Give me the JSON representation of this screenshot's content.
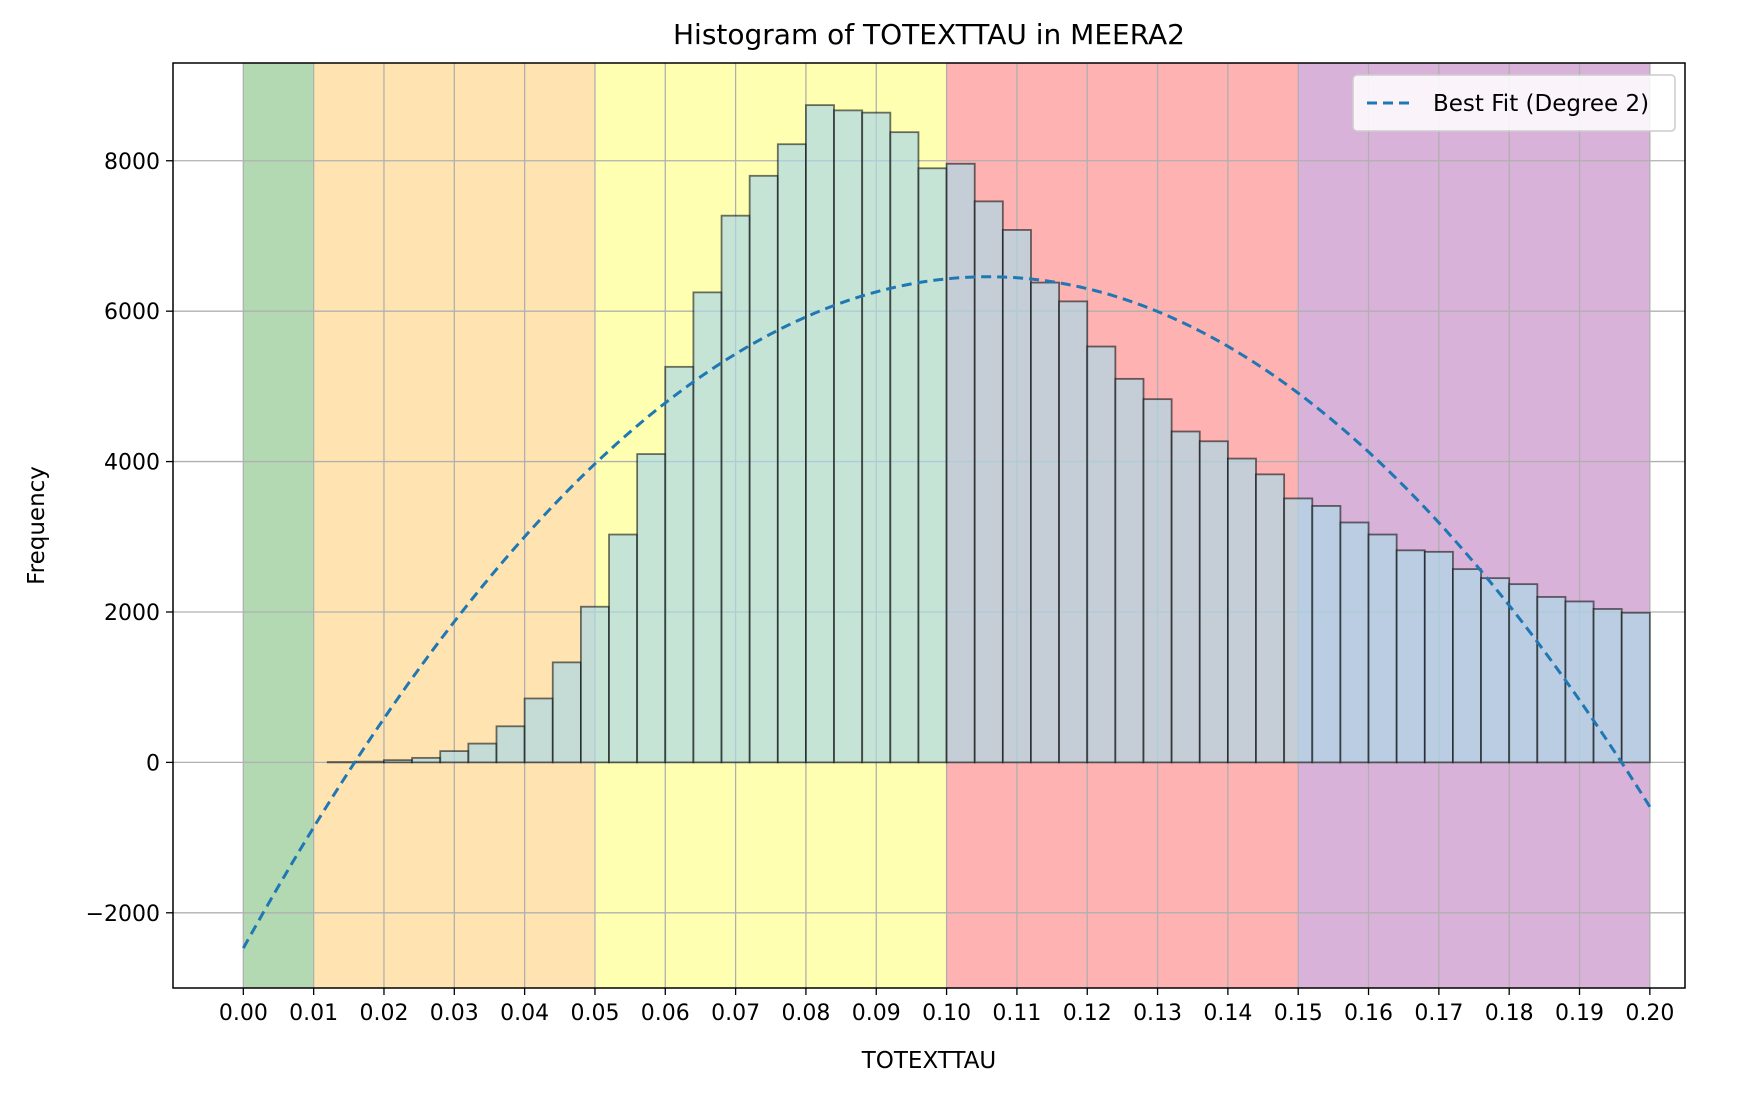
{
  "chart_data": {
    "type": "bar",
    "title": "Histogram of TOTEXTTAU in MEERA2",
    "xlabel": "TOTEXTTAU",
    "ylabel": "Frequency",
    "xlim": [
      -0.01,
      0.205
    ],
    "ylim": [
      -3000,
      9300
    ],
    "x_ticks": [
      "0.00",
      "0.01",
      "0.02",
      "0.03",
      "0.04",
      "0.05",
      "0.06",
      "0.07",
      "0.08",
      "0.09",
      "0.10",
      "0.11",
      "0.12",
      "0.13",
      "0.14",
      "0.15",
      "0.16",
      "0.17",
      "0.18",
      "0.19",
      "0.20"
    ],
    "y_ticks": [
      -2000,
      0,
      2000,
      4000,
      6000,
      8000
    ],
    "y_tick_labels": [
      "−2000",
      "0",
      "2000",
      "4000",
      "6000",
      "8000"
    ],
    "grid": true,
    "bin_width": 0.004,
    "bin_start": 0.0,
    "values": [
      0,
      0,
      0,
      5,
      10,
      30,
      60,
      150,
      250,
      480,
      850,
      1330,
      2070,
      3030,
      4100,
      5260,
      6250,
      7270,
      7800,
      8220,
      8740,
      8670,
      8640,
      8380,
      7900,
      7960,
      7460,
      7080,
      6380,
      6130,
      5530,
      5100,
      4830,
      4400,
      4270,
      4040,
      3830,
      3510,
      3410,
      3190,
      3030,
      2820,
      2800,
      2570,
      2450,
      2370,
      2200,
      2140,
      2040,
      1990
    ],
    "bar_color": "#add8e6",
    "bar_edge": "#000000",
    "bands": [
      {
        "from": 0.0,
        "to": 0.01,
        "color": "#008000"
      },
      {
        "from": 0.01,
        "to": 0.05,
        "color": "#ffa500"
      },
      {
        "from": 0.05,
        "to": 0.1,
        "color": "#ffff00"
      },
      {
        "from": 0.1,
        "to": 0.15,
        "color": "#ff0000"
      },
      {
        "from": 0.15,
        "to": 0.2,
        "color": "#800080"
      }
    ],
    "fit": {
      "name": "Best Fit (Degree 2)",
      "color": "#1f77b4",
      "coefficients": [
        -2470,
        168600,
        -796000
      ],
      "x_range": [
        0.0,
        0.2
      ]
    },
    "legend_position": "upper-right"
  }
}
